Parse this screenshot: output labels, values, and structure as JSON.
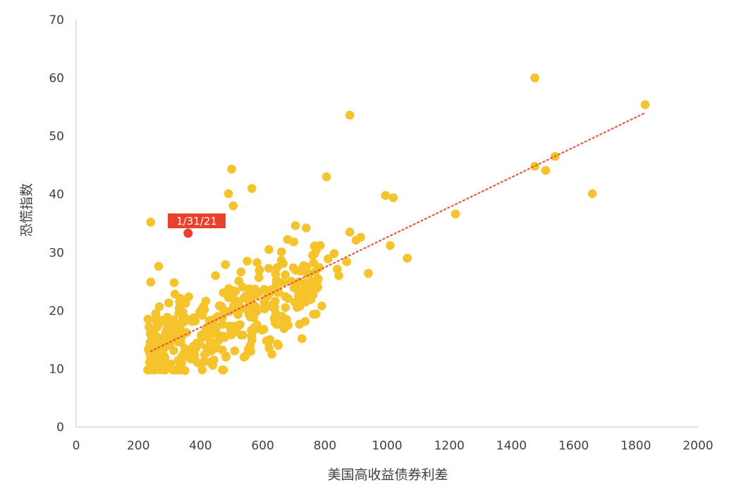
{
  "chart_data": {
    "type": "scatter",
    "xlabel": "美国高收益债券利差",
    "ylabel": "恐慌指数",
    "xlim": [
      0,
      2000
    ],
    "ylim": [
      0,
      70
    ],
    "x_ticks": [
      "0",
      "200",
      "400",
      "600",
      "800",
      "1000",
      "1200",
      "1400",
      "1600",
      "1800",
      "2000"
    ],
    "y_ticks": [
      "0",
      "10",
      "20",
      "30",
      "40",
      "50",
      "60",
      "70"
    ],
    "grid": false,
    "legend": "none",
    "colors": {
      "points": "#F5C32C",
      "highlight": "#E8412C",
      "trendline": "#E8573A",
      "axis": "#D9D9D9"
    },
    "trendline": {
      "style": "dotted",
      "from": [
        240,
        13
      ],
      "to": [
        1830,
        54
      ]
    },
    "highlight": {
      "label": "1/31/21",
      "x": 360,
      "y": 33.3
    },
    "outliers": [
      [
        240,
        35.2
      ],
      [
        500,
        44.3
      ],
      [
        490,
        40.1
      ],
      [
        505,
        38.0
      ],
      [
        565,
        41.0
      ],
      [
        805,
        43.0
      ],
      [
        880,
        53.6
      ],
      [
        1475,
        60.0
      ],
      [
        1830,
        55.4
      ],
      [
        1475,
        44.8
      ],
      [
        1510,
        44.1
      ],
      [
        1540,
        46.5
      ],
      [
        1660,
        40.1
      ],
      [
        1220,
        36.6
      ],
      [
        995,
        39.8
      ],
      [
        1020,
        39.4
      ],
      [
        1010,
        31.2
      ],
      [
        1065,
        29.0
      ],
      [
        940,
        26.4
      ],
      [
        880,
        33.5
      ],
      [
        900,
        32.1
      ],
      [
        915,
        32.6
      ],
      [
        870,
        28.4
      ],
      [
        845,
        26.0
      ],
      [
        830,
        29.8
      ],
      [
        840,
        27.1
      ],
      [
        810,
        28.9
      ],
      [
        790,
        20.8
      ],
      [
        785,
        31.2
      ],
      [
        740,
        34.2
      ],
      [
        705,
        34.6
      ],
      [
        700,
        31.8
      ],
      [
        650,
        14.0
      ],
      [
        540,
        12.0
      ],
      [
        255,
        10.5
      ],
      [
        350,
        9.7
      ],
      [
        265,
        27.6
      ],
      [
        240,
        24.9
      ],
      [
        315,
        24.8
      ],
      [
        620,
        30.5
      ],
      [
        660,
        30.1
      ],
      [
        680,
        32.2
      ],
      [
        550,
        28.5
      ],
      [
        480,
        27.9
      ],
      [
        760,
        29.5
      ]
    ],
    "cluster": {
      "count": 360,
      "x_range": [
        230,
        790
      ],
      "trend_intercept": 7.7,
      "trend_slope": 0.0215,
      "spread": 3.6
    }
  }
}
